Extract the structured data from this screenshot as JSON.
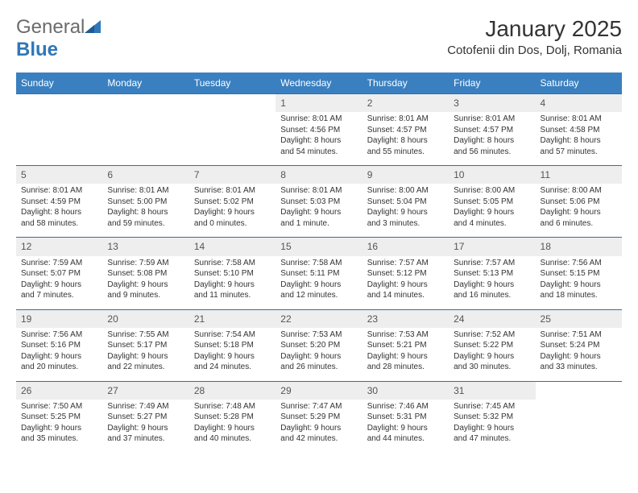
{
  "brand": {
    "name_part1": "General",
    "name_part2": "Blue"
  },
  "title": "January 2025",
  "location": "Cotofenii din Dos, Dolj, Romania",
  "colors": {
    "header_bg": "#3a80c0",
    "header_text": "#ffffff",
    "daynum_bg": "#eeeeee",
    "row_border": "#2f6fa8",
    "body_text": "#333333",
    "logo_gray": "#6b6b6b",
    "logo_blue": "#2f77b8",
    "page_bg": "#ffffff"
  },
  "weekdays": [
    "Sunday",
    "Monday",
    "Tuesday",
    "Wednesday",
    "Thursday",
    "Friday",
    "Saturday"
  ],
  "weeks": [
    [
      null,
      null,
      null,
      {
        "n": "1",
        "sr": "8:01 AM",
        "ss": "4:56 PM",
        "dh": "8",
        "dm": "54"
      },
      {
        "n": "2",
        "sr": "8:01 AM",
        "ss": "4:57 PM",
        "dh": "8",
        "dm": "55"
      },
      {
        "n": "3",
        "sr": "8:01 AM",
        "ss": "4:57 PM",
        "dh": "8",
        "dm": "56"
      },
      {
        "n": "4",
        "sr": "8:01 AM",
        "ss": "4:58 PM",
        "dh": "8",
        "dm": "57"
      }
    ],
    [
      {
        "n": "5",
        "sr": "8:01 AM",
        "ss": "4:59 PM",
        "dh": "8",
        "dm": "58"
      },
      {
        "n": "6",
        "sr": "8:01 AM",
        "ss": "5:00 PM",
        "dh": "8",
        "dm": "59"
      },
      {
        "n": "7",
        "sr": "8:01 AM",
        "ss": "5:02 PM",
        "dh": "9",
        "dm": "0"
      },
      {
        "n": "8",
        "sr": "8:01 AM",
        "ss": "5:03 PM",
        "dh": "9",
        "dm": "1"
      },
      {
        "n": "9",
        "sr": "8:00 AM",
        "ss": "5:04 PM",
        "dh": "9",
        "dm": "3"
      },
      {
        "n": "10",
        "sr": "8:00 AM",
        "ss": "5:05 PM",
        "dh": "9",
        "dm": "4"
      },
      {
        "n": "11",
        "sr": "8:00 AM",
        "ss": "5:06 PM",
        "dh": "9",
        "dm": "6"
      }
    ],
    [
      {
        "n": "12",
        "sr": "7:59 AM",
        "ss": "5:07 PM",
        "dh": "9",
        "dm": "7"
      },
      {
        "n": "13",
        "sr": "7:59 AM",
        "ss": "5:08 PM",
        "dh": "9",
        "dm": "9"
      },
      {
        "n": "14",
        "sr": "7:58 AM",
        "ss": "5:10 PM",
        "dh": "9",
        "dm": "11"
      },
      {
        "n": "15",
        "sr": "7:58 AM",
        "ss": "5:11 PM",
        "dh": "9",
        "dm": "12"
      },
      {
        "n": "16",
        "sr": "7:57 AM",
        "ss": "5:12 PM",
        "dh": "9",
        "dm": "14"
      },
      {
        "n": "17",
        "sr": "7:57 AM",
        "ss": "5:13 PM",
        "dh": "9",
        "dm": "16"
      },
      {
        "n": "18",
        "sr": "7:56 AM",
        "ss": "5:15 PM",
        "dh": "9",
        "dm": "18"
      }
    ],
    [
      {
        "n": "19",
        "sr": "7:56 AM",
        "ss": "5:16 PM",
        "dh": "9",
        "dm": "20"
      },
      {
        "n": "20",
        "sr": "7:55 AM",
        "ss": "5:17 PM",
        "dh": "9",
        "dm": "22"
      },
      {
        "n": "21",
        "sr": "7:54 AM",
        "ss": "5:18 PM",
        "dh": "9",
        "dm": "24"
      },
      {
        "n": "22",
        "sr": "7:53 AM",
        "ss": "5:20 PM",
        "dh": "9",
        "dm": "26"
      },
      {
        "n": "23",
        "sr": "7:53 AM",
        "ss": "5:21 PM",
        "dh": "9",
        "dm": "28"
      },
      {
        "n": "24",
        "sr": "7:52 AM",
        "ss": "5:22 PM",
        "dh": "9",
        "dm": "30"
      },
      {
        "n": "25",
        "sr": "7:51 AM",
        "ss": "5:24 PM",
        "dh": "9",
        "dm": "33"
      }
    ],
    [
      {
        "n": "26",
        "sr": "7:50 AM",
        "ss": "5:25 PM",
        "dh": "9",
        "dm": "35"
      },
      {
        "n": "27",
        "sr": "7:49 AM",
        "ss": "5:27 PM",
        "dh": "9",
        "dm": "37"
      },
      {
        "n": "28",
        "sr": "7:48 AM",
        "ss": "5:28 PM",
        "dh": "9",
        "dm": "40"
      },
      {
        "n": "29",
        "sr": "7:47 AM",
        "ss": "5:29 PM",
        "dh": "9",
        "dm": "42"
      },
      {
        "n": "30",
        "sr": "7:46 AM",
        "ss": "5:31 PM",
        "dh": "9",
        "dm": "44"
      },
      {
        "n": "31",
        "sr": "7:45 AM",
        "ss": "5:32 PM",
        "dh": "9",
        "dm": "47"
      },
      null
    ]
  ],
  "labels": {
    "sunrise_prefix": "Sunrise: ",
    "sunset_prefix": "Sunset: ",
    "daylight_prefix": "Daylight: ",
    "hours_word": " hours",
    "and_word": "and ",
    "minutes_suffix": " minutes.",
    "minute_suffix": " minute."
  }
}
